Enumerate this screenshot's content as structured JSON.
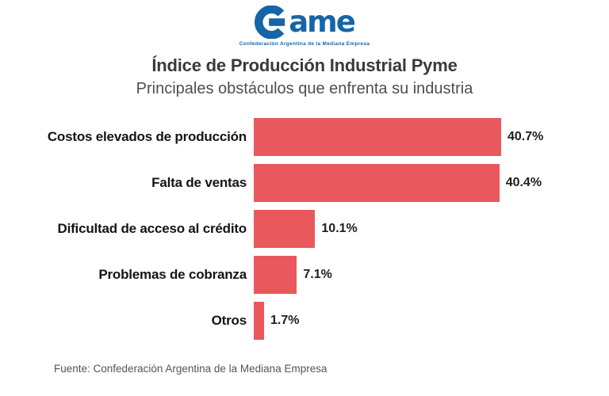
{
  "logo": {
    "name": "Came",
    "mark_letter": "C",
    "rest": "ame",
    "tagline": "Confederación Argentina de la Mediana Empresa",
    "color": "#1565a8"
  },
  "header": {
    "title": "Índice de Producción Industrial Pyme",
    "subtitle": "Principales obstáculos que enfrenta su industria"
  },
  "chart_data": {
    "type": "bar",
    "orientation": "horizontal",
    "title": "Índice de Producción Industrial Pyme",
    "subtitle": "Principales obstáculos que enfrenta su industria",
    "categories": [
      "Costos elevados de producción",
      "Falta de ventas",
      "Dificultad de acceso al crédito",
      "Problemas de cobranza",
      "Otros"
    ],
    "values": [
      40.7,
      40.4,
      10.1,
      7.1,
      1.7
    ],
    "value_labels": [
      "40.7%",
      "40.4%",
      "10.1%",
      "7.1%",
      "1.7%"
    ],
    "unit": "%",
    "xlim": [
      0,
      41
    ],
    "grid": false,
    "legend": false,
    "bar_color": "#e9585c",
    "label_color": "#151515"
  },
  "footer": {
    "source": "Fuente: Confederación Argentina de la Mediana Empresa"
  }
}
